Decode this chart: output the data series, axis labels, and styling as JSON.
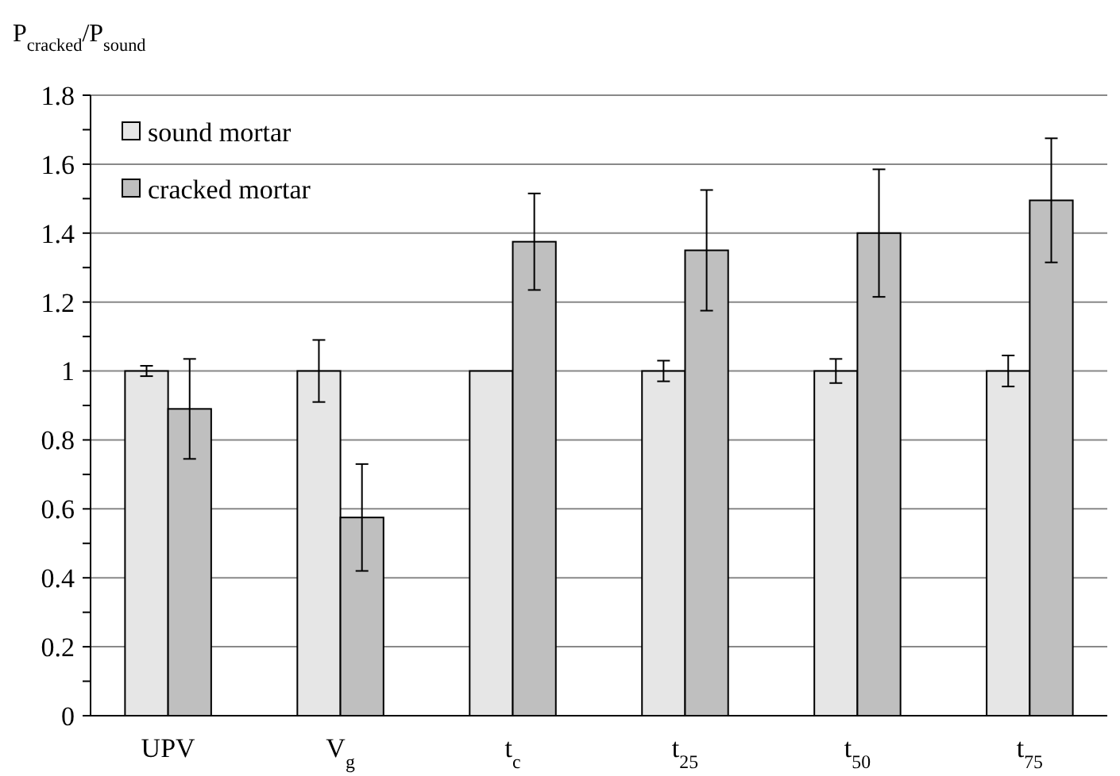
{
  "chart_data": {
    "type": "bar",
    "ylabel": "P$_{cracked}$/P$_{sound}$",
    "categories": [
      "UPV",
      "V$_{g}$",
      "t$_{c}$",
      "t$_{25}$",
      "t$_{50}$",
      "t$_{75}$"
    ],
    "series": [
      {
        "name": "sound mortar",
        "color": "#e6e6e6",
        "values": [
          1,
          1,
          1,
          1,
          1,
          1
        ],
        "errors": [
          0.015,
          0.09,
          null,
          0.03,
          0.035,
          0.045
        ]
      },
      {
        "name": "cracked mortar",
        "color": "#bfbfbf",
        "values": [
          0.89,
          0.575,
          1.375,
          1.35,
          1.4,
          1.495
        ],
        "errors": [
          0.145,
          0.155,
          0.14,
          0.175,
          0.185,
          0.18
        ]
      }
    ],
    "ylim": [
      0,
      1.8
    ],
    "yticks": [
      0,
      {
        "value": 0.1,
        "label": null
      },
      0.2,
      {
        "value": 0.3,
        "label": null
      },
      0.4,
      {
        "value": 0.5,
        "label": null
      },
      0.6,
      {
        "value": 0.7,
        "label": null
      },
      0.8,
      {
        "value": 0.9,
        "label": null
      },
      1,
      {
        "value": 1.1,
        "label": null
      },
      1.2,
      {
        "value": 1.3,
        "label": null
      },
      1.4,
      {
        "value": 1.5,
        "label": null
      },
      1.6,
      {
        "value": 1.7,
        "label": null
      },
      1.8
    ],
    "grid": "y",
    "legend": "top left"
  }
}
